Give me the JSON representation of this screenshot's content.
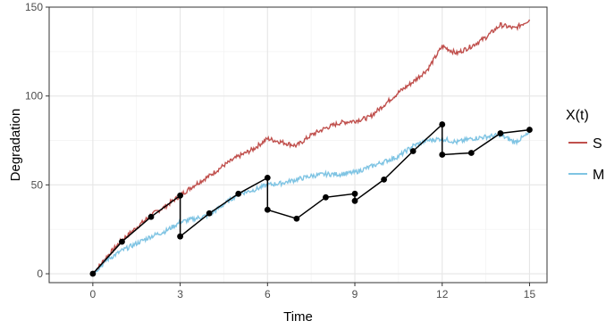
{
  "chart_data": {
    "type": "line",
    "xlabel": "Time",
    "ylabel": "Degradation",
    "xlim": [
      -1.5,
      15.6
    ],
    "ylim": [
      -5,
      150
    ],
    "xticks": [
      0,
      3,
      6,
      9,
      12,
      15
    ],
    "yticks": [
      0,
      50,
      100,
      150
    ],
    "xtick_labels": [
      "0",
      "3",
      "6",
      "9",
      "12",
      "15"
    ],
    "ytick_labels": [
      "0",
      "50",
      "100",
      "150"
    ],
    "grid": true,
    "legend_position": "right",
    "legend_title": "X(t)",
    "series": [
      {
        "name": "S",
        "color": "#c0504d",
        "x": [
          0,
          0.5,
          1,
          1.5,
          2,
          2.5,
          3,
          3.5,
          4,
          4.5,
          5,
          5.5,
          6,
          6.5,
          7,
          7.5,
          8,
          8.5,
          9,
          9.5,
          10,
          10.5,
          11,
          11.5,
          12,
          12.5,
          13,
          13.5,
          14,
          14.5,
          15
        ],
        "y": [
          0,
          10,
          19,
          26,
          33,
          38,
          44,
          50,
          55,
          61,
          66,
          70,
          76,
          74,
          72,
          78,
          82,
          85,
          86,
          88,
          95,
          102,
          108,
          115,
          128,
          124,
          128,
          133,
          140,
          138,
          143
        ]
      },
      {
        "name": "M",
        "color": "#7fc4e3",
        "x": [
          0,
          0.5,
          1,
          1.5,
          2,
          2.5,
          3,
          3.5,
          4,
          4.5,
          5,
          5.5,
          6,
          6.5,
          7,
          7.5,
          8,
          8.5,
          9,
          9.5,
          10,
          10.5,
          11,
          11.5,
          12,
          12.5,
          13,
          13.5,
          14,
          14.5,
          15
        ],
        "y": [
          0,
          8,
          13,
          17,
          21,
          24,
          29,
          31,
          33,
          39,
          45,
          47,
          50,
          51,
          53,
          55,
          56,
          56,
          57,
          60,
          63,
          66,
          72,
          75,
          76,
          74,
          76,
          77,
          78,
          74,
          79
        ]
      },
      {
        "name": "",
        "color": "#000000",
        "markers": true,
        "x": [
          0,
          1,
          2,
          3,
          3,
          4,
          5,
          6,
          6,
          7,
          8,
          9,
          9,
          10,
          11,
          12,
          12,
          13,
          14,
          15
        ],
        "y": [
          0,
          18,
          32,
          44,
          21,
          34,
          45,
          54,
          36,
          31,
          43,
          45,
          41,
          53,
          69,
          84,
          67,
          68,
          79,
          81
        ]
      }
    ]
  }
}
